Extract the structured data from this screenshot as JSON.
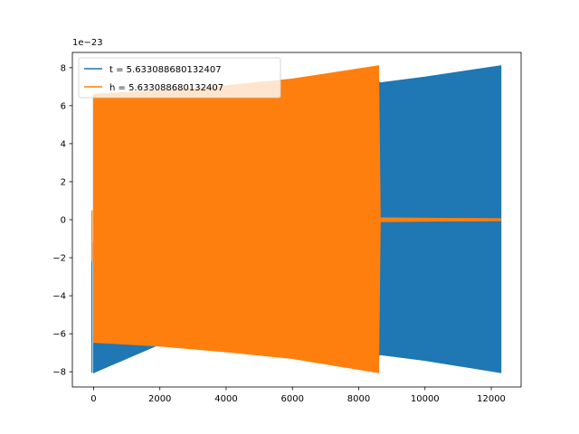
{
  "chart_data": {
    "type": "line",
    "title": "",
    "xlabel": "",
    "ylabel": "",
    "y_offset_label": "1e−23",
    "xlim": [
      -640,
      12900
    ],
    "ylim": [
      -8.8,
      8.8
    ],
    "x_ticks": [
      0,
      2000,
      4000,
      6000,
      8000,
      10000,
      12000
    ],
    "y_ticks": [
      -8,
      -6,
      -4,
      -2,
      0,
      2,
      4,
      6,
      8
    ],
    "grid": false,
    "legend_position": "top-left",
    "series": [
      {
        "name": "t = 5.633088680132407",
        "color": "#1f77b4",
        "start_x": -50,
        "end_x": 12290,
        "envelope": [
          {
            "x": 0,
            "upper": 6.5,
            "lower": -8.05
          },
          {
            "x": 2000,
            "upper": 6.7,
            "lower": -6.55
          },
          {
            "x": 4000,
            "upper": 6.9,
            "lower": -6.8
          },
          {
            "x": 6000,
            "upper": 7.3,
            "lower": -7.2
          },
          {
            "x": 8000,
            "upper": 7.9,
            "lower": -7.8
          },
          {
            "x": 8650,
            "upper": 7.2,
            "lower": -7.1
          },
          {
            "x": 10000,
            "upper": 7.5,
            "lower": -7.4
          },
          {
            "x": 12290,
            "upper": 8.1,
            "lower": -8.05
          }
        ]
      },
      {
        "name": "h = 5.633088680132407",
        "color": "#ff7f0e",
        "start_x": -50,
        "end_x": 12290,
        "envelope": [
          {
            "x": 0,
            "upper": 6.6,
            "lower": -6.45
          },
          {
            "x": 2000,
            "upper": 6.8,
            "lower": -6.65
          },
          {
            "x": 4000,
            "upper": 7.05,
            "lower": -6.95
          },
          {
            "x": 6000,
            "upper": 7.4,
            "lower": -7.3
          },
          {
            "x": 8600,
            "upper": 8.1,
            "lower": -8.05
          },
          {
            "x": 8650,
            "upper": 0.1,
            "lower": -0.1
          },
          {
            "x": 12290,
            "upper": 0.05,
            "lower": -0.05
          }
        ]
      }
    ]
  }
}
